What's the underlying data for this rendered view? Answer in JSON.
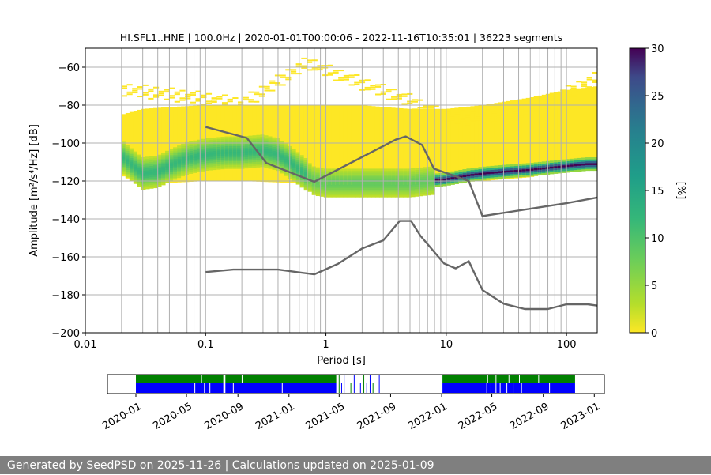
{
  "title": "HI.SFL1..HNE | 100.0Hz | 2020-01-01T00:00:06 - 2022-11-16T10:35:01 | 36223 segments",
  "footer": "Generated by SeedPSD on 2025-11-26 | Calculations updated on 2025-01-09",
  "colors": {
    "noise_model": "#666666",
    "grid": "#b0b0b0",
    "avail_green": "#008000",
    "avail_blue": "#0000ff",
    "footer_bg": "#7f7f7f"
  },
  "chart_data": [
    {
      "type": "heatmap",
      "title": "HI.SFL1..HNE | 100.0Hz | 2020-01-01T00:00:06 - 2022-11-16T10:35:01 | 36223 segments",
      "xlabel": "Period [s]",
      "ylabel": "Amplitude [m²/s⁴/Hz] [dB]",
      "x_scale": "log",
      "xlim": [
        0.01,
        180
      ],
      "ylim": [
        -200,
        -50
      ],
      "xticks": [
        0.01,
        0.1,
        1,
        10,
        100
      ],
      "xtick_labels": [
        "0.01",
        "0.1",
        "1",
        "10",
        "100"
      ],
      "yticks": [
        -200,
        -180,
        -160,
        -140,
        -120,
        -100,
        -80,
        -60
      ],
      "ytick_labels": [
        "−200",
        "−180",
        "−160",
        "−140",
        "−120",
        "−100",
        "−80",
        "−60"
      ],
      "grid_periods": [
        0.02,
        0.03,
        0.04,
        0.05,
        0.06,
        0.07,
        0.08,
        0.09,
        0.1,
        0.2,
        0.3,
        0.4,
        0.5,
        0.6,
        0.7,
        0.8,
        0.9,
        1,
        2,
        3,
        4,
        5,
        6,
        7,
        8,
        9,
        10,
        20,
        30,
        40,
        50,
        60,
        70,
        80,
        90,
        100
      ],
      "colorbar": {
        "label": "[%]",
        "min": 0,
        "max": 30,
        "ticks": [
          0,
          5,
          10,
          15,
          20,
          25,
          30
        ],
        "colormap": "viridis_r"
      },
      "psd_mode": {
        "periods": [
          0.02,
          0.025,
          0.03,
          0.04,
          0.05,
          0.07,
          0.1,
          0.15,
          0.2,
          0.3,
          0.4,
          0.5,
          0.7,
          0.8,
          1,
          2,
          3,
          5,
          7,
          10,
          15,
          20,
          30,
          50,
          70,
          100,
          150,
          180
        ],
        "db": [
          -107,
          -112,
          -116,
          -115,
          -112,
          -108,
          -106,
          -105,
          -105,
          -104,
          -106,
          -110,
          -117,
          -120,
          -121,
          -121,
          -121,
          -121,
          -120,
          -119,
          -117,
          -116,
          -115,
          -114,
          -113,
          -112,
          -111,
          -111
        ]
      },
      "psd_low": {
        "periods": [
          0.02,
          0.03,
          0.05,
          0.1,
          0.2,
          0.5,
          0.8,
          1,
          2,
          5,
          10,
          20,
          50,
          100,
          180
        ],
        "db": [
          -117,
          -123,
          -121,
          -120,
          -120,
          -121,
          -122,
          -122,
          -122,
          -122,
          -121,
          -120,
          -118,
          -114,
          -112
        ]
      },
      "psd_high": {
        "periods": [
          0.02,
          0.03,
          0.05,
          0.1,
          0.15,
          0.2,
          0.4,
          0.6,
          1,
          2,
          3,
          5,
          10,
          20,
          50,
          100,
          180
        ],
        "db": [
          -85,
          -82,
          -81,
          -80,
          -80,
          -80,
          -80,
          -80,
          -80,
          -80,
          -81,
          -82,
          -82,
          -80,
          -76,
          -72,
          -70
        ]
      },
      "psd_sparse": {
        "periods": [
          0.02,
          0.04,
          0.1,
          0.2,
          0.3,
          0.5,
          0.7,
          1,
          2,
          5,
          10,
          20,
          50,
          100,
          180
        ],
        "db": [
          -72,
          -74,
          -77,
          -80,
          -73,
          -64,
          -58,
          -62,
          -69,
          -78,
          -87,
          -87,
          -82,
          -74,
          -66
        ]
      },
      "series": [
        {
          "name": "",
          "periods": [
            0.1,
            0.22,
            0.32,
            0.8,
            3.8,
            4.6,
            6.3,
            7.9,
            15.4,
            20,
            100,
            180
          ],
          "db": [
            -91.5,
            -97.3,
            -110.5,
            -120.4,
            -98.2,
            -96.5,
            -101,
            -113.5,
            -120,
            -138.5,
            -131.7,
            -128.7
          ]
        },
        {
          "name": "",
          "periods": [
            0.1,
            0.17,
            0.4,
            0.8,
            1.26,
            2,
            3,
            4.1,
            5.1,
            6.1,
            9.6,
            12,
            15.4,
            20,
            30,
            45,
            70,
            100,
            150,
            180
          ],
          "db": [
            -168,
            -166.7,
            -166.7,
            -169.2,
            -163.7,
            -155.6,
            -151.3,
            -141.1,
            -141.1,
            -148.9,
            -163.5,
            -166.1,
            -162.3,
            -177.5,
            -184.7,
            -187.5,
            -187.5,
            -185,
            -185,
            -185.7
          ]
        }
      ]
    },
    {
      "type": "availability",
      "x_dates": [
        "2020-01",
        "2020-05",
        "2020-09",
        "2021-01",
        "2021-05",
        "2021-09",
        "2022-01",
        "2022-05",
        "2022-09",
        "2023-01"
      ],
      "xlim": [
        "2019-10-25",
        "2023-01-25"
      ],
      "green_segments": [
        [
          "2020-01-01",
          "2020-07-28"
        ],
        [
          "2020-08-02",
          "2021-04-24"
        ],
        [
          "2022-01-03",
          "2022-11-16"
        ]
      ],
      "blue_segments": [
        [
          "2020-01-01",
          "2020-07-28"
        ],
        [
          "2020-08-02",
          "2021-04-24"
        ],
        [
          "2022-01-03",
          "2022-11-16"
        ]
      ],
      "green_gap_dates": [
        "2020-06-05",
        "2020-09-10",
        "2021-05-05",
        "2021-06-01",
        "2021-07-10",
        "2021-07-20",
        "2022-04-20",
        "2022-05-10",
        "2022-06-10",
        "2022-07-05",
        "2022-08-20"
      ],
      "blue_gap_dates": [
        "2020-05-20",
        "2020-06-12",
        "2020-06-25",
        "2020-08-20",
        "2020-12-15",
        "2022-04-18",
        "2022-04-28",
        "2022-05-10",
        "2022-05-20",
        "2022-06-05",
        "2022-06-20",
        "2022-07-10",
        "2022-09-15"
      ],
      "blue_sparse_dates": [
        "2021-04-30",
        "2021-05-06",
        "2021-05-12",
        "2021-05-28",
        "2021-06-05",
        "2021-06-20",
        "2021-06-28",
        "2021-07-05",
        "2021-07-13",
        "2021-07-20",
        "2021-08-04"
      ]
    }
  ]
}
